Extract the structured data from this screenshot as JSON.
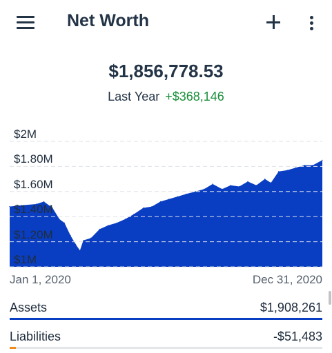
{
  "app": {
    "title": "Net Worth"
  },
  "icons": {
    "menu": "hamburger-menu-icon",
    "add": "plus-icon",
    "more": "vertical-dots-icon"
  },
  "summary": {
    "total": "$1,856,778.53",
    "period_label": "Last Year",
    "change": "+$368,146",
    "change_color": "#1a8f3a"
  },
  "chart_data": {
    "type": "area",
    "color": "#0a3ec2",
    "y_tick_labels": [
      "$2M",
      "$1.80M",
      "$1.60M",
      "$1.40M",
      "$1.20M",
      "$1M"
    ],
    "y_ticks": [
      2000000,
      1800000,
      1600000,
      1400000,
      1200000,
      1000000
    ],
    "ylim": [
      1000000,
      2000000
    ],
    "grid": true,
    "x_tick_labels": [
      "Jan 1, 2020",
      "Dec 31, 2020"
    ],
    "x": [
      "2020-01-01",
      "2020-01-15",
      "2020-02-01",
      "2020-02-10",
      "2020-02-20",
      "2020-02-28",
      "2020-03-05",
      "2020-03-12",
      "2020-03-18",
      "2020-03-23",
      "2020-03-27",
      "2020-04-05",
      "2020-04-15",
      "2020-04-25",
      "2020-05-05",
      "2020-05-15",
      "2020-05-25",
      "2020-06-05",
      "2020-06-15",
      "2020-06-25",
      "2020-07-05",
      "2020-07-15",
      "2020-07-25",
      "2020-08-05",
      "2020-08-15",
      "2020-08-25",
      "2020-09-05",
      "2020-09-15",
      "2020-09-25",
      "2020-10-05",
      "2020-10-15",
      "2020-10-25",
      "2020-11-01",
      "2020-11-10",
      "2020-11-20",
      "2020-11-30",
      "2020-12-10",
      "2020-12-20",
      "2020-12-31"
    ],
    "values": [
      1480000,
      1490000,
      1500000,
      1520000,
      1470000,
      1380000,
      1350000,
      1250000,
      1180000,
      1130000,
      1210000,
      1230000,
      1300000,
      1330000,
      1350000,
      1380000,
      1420000,
      1470000,
      1480000,
      1520000,
      1540000,
      1560000,
      1580000,
      1600000,
      1620000,
      1660000,
      1620000,
      1650000,
      1640000,
      1680000,
      1650000,
      1700000,
      1670000,
      1760000,
      1770000,
      1790000,
      1810000,
      1810000,
      1850000
    ]
  },
  "accounts": [
    {
      "label": "Assets",
      "value": "$1,908,261",
      "bar_fraction": 1.0,
      "bar_color": "#0a3ec2"
    },
    {
      "label": "Liabilities",
      "value": "-$51,483",
      "bar_fraction": 0.02,
      "bar_color": "#f08c1a"
    }
  ]
}
